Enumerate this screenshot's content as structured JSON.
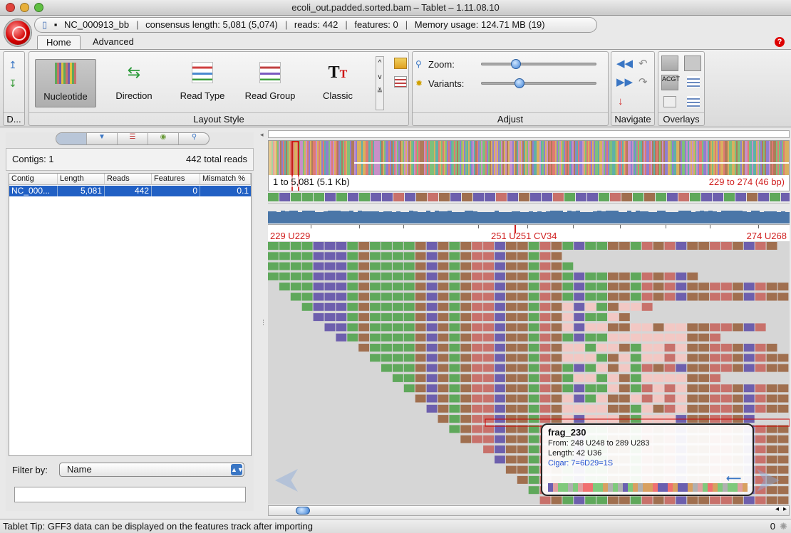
{
  "window": {
    "title": "ecoli_out.padded.sorted.bam – Tablet – 1.11.08.10"
  },
  "info_strip": {
    "contig": "NC_000913_bb",
    "consensus": "consensus length: 5,081 (5,074)",
    "reads": "reads: 442",
    "features": "features: 0",
    "memory": "Memory usage: 124.71 MB (19)"
  },
  "tabs": [
    {
      "label": "Home",
      "active": true
    },
    {
      "label": "Advanced",
      "active": false
    }
  ],
  "ribbon": {
    "first_group_label": "D...",
    "layout_style": {
      "label": "Layout Style",
      "buttons": [
        "Nucleotide",
        "Direction",
        "Read Type",
        "Read Group",
        "Classic"
      ],
      "selected": "Nucleotide"
    },
    "adjust": {
      "label": "Adjust",
      "zoom_label": "Zoom:",
      "variants_label": "Variants:",
      "zoom_level": 0.3,
      "variants_level": 0.33
    },
    "navigate": {
      "label": "Navigate"
    },
    "overlays": {
      "label": "Overlays"
    }
  },
  "contigs_panel": {
    "contigs_count": "Contigs: 1",
    "total_reads": "442 total reads",
    "columns": [
      "Contig",
      "Length",
      "Reads",
      "Features",
      "Mismatch %"
    ],
    "rows": [
      {
        "contig": "NC_000...",
        "length": "5,081",
        "reads": "442",
        "features": "0",
        "mismatch": "0.1"
      }
    ],
    "filter_label": "Filter by:",
    "filter_value": "Name"
  },
  "overview": {
    "range_left": "1 to 5,081 (5.1 Kb)",
    "range_right": "229 to 274 (46 bp)"
  },
  "ruler": {
    "left": "229 U229",
    "middle": "251 U251 CV34",
    "right": "274 U268"
  },
  "tooltip": {
    "title": "frag_230",
    "from": "From: 248 U248 to 289 U283",
    "length": "Length: 42 U36",
    "cigar": "Cigar: 7=6D29=1S"
  },
  "status": {
    "tip": "Tablet Tip: GFF3 data can be displayed on the features track after importing",
    "count": "0"
  },
  "colors": {
    "A": "#5fa85b",
    "T": "#6d5fad",
    "C": "#a06f4f",
    "G": "#c8716b",
    "selection": "#2160c4"
  }
}
